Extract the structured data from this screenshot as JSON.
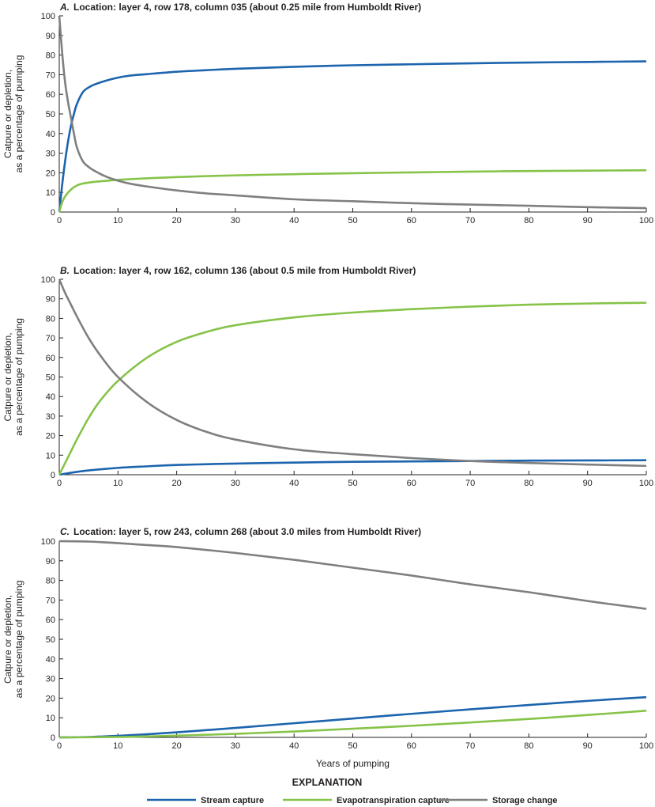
{
  "colors": {
    "stream": "#1c64ad",
    "et": "#86c348",
    "storage": "#7f7f80",
    "axis": "#231f20"
  },
  "legend": {
    "title": "EXPLANATION",
    "items": [
      {
        "label": "Stream capture",
        "color": "#1c64ad"
      },
      {
        "label": "Evapotranspiration capture",
        "color": "#86c348"
      },
      {
        "label": "Storage change",
        "color": "#7f7f80"
      }
    ]
  },
  "chart_data": [
    {
      "type": "line",
      "panel": "A.",
      "title": "Location: layer 4, row 178, column 035 (about 0.25 mile from Humboldt River)",
      "ylabel": [
        "Catpure or depletion,",
        "as a percentage of pumping"
      ],
      "xlabel": "",
      "xlim": [
        0,
        100
      ],
      "ylim": [
        0,
        100
      ],
      "xticks": [
        "0",
        "10",
        "20",
        "30",
        "40",
        "50",
        "60",
        "70",
        "80",
        "90",
        "100"
      ],
      "yticks": [
        "0",
        "10",
        "20",
        "30",
        "40",
        "50",
        "60",
        "70",
        "80",
        "90",
        "100"
      ],
      "series": [
        {
          "name": "Stream capture",
          "key": "stream",
          "x": [
            0,
            0.5,
            1,
            1.5,
            2,
            2.5,
            3,
            4,
            5,
            6,
            8,
            10,
            12,
            15,
            20,
            25,
            30,
            40,
            50,
            60,
            70,
            80,
            90,
            100
          ],
          "y": [
            0,
            14,
            26,
            36,
            44,
            50,
            55,
            61,
            63.5,
            65,
            67,
            68.5,
            69.5,
            70.3,
            71.5,
            72.3,
            73,
            74,
            74.8,
            75.3,
            75.8,
            76.2,
            76.5,
            76.8
          ]
        },
        {
          "name": "Evapotranspiration capture",
          "key": "et",
          "x": [
            0,
            0.5,
            1,
            2,
            3,
            4,
            5,
            6,
            8,
            10,
            15,
            20,
            25,
            30,
            40,
            50,
            60,
            70,
            80,
            90,
            100
          ],
          "y": [
            0,
            5,
            8,
            11.5,
            13.5,
            14.5,
            15,
            15.4,
            15.9,
            16.4,
            17.2,
            17.8,
            18.3,
            18.7,
            19.3,
            19.8,
            20.2,
            20.6,
            20.9,
            21.1,
            21.3
          ]
        },
        {
          "name": "Storage change",
          "key": "storage",
          "x": [
            0,
            0.5,
            1,
            1.5,
            2,
            2.5,
            3,
            4,
            5,
            6,
            8,
            10,
            12,
            15,
            20,
            25,
            30,
            40,
            50,
            60,
            70,
            80,
            90,
            100
          ],
          "y": [
            100,
            81,
            66,
            56,
            48,
            40,
            33,
            26,
            23,
            21,
            18,
            16,
            14.5,
            13,
            11,
            9.5,
            8.5,
            6.5,
            5.5,
            4.5,
            3.8,
            3.2,
            2.5,
            2
          ]
        }
      ]
    },
    {
      "type": "line",
      "panel": "B.",
      "title": "Location: layer 4, row 162, column 136 (about 0.5 mile from Humboldt River)",
      "ylabel": [
        "Catpure or depletion,",
        "as a percentage of pumping"
      ],
      "xlabel": "",
      "xlim": [
        0,
        100
      ],
      "ylim": [
        0,
        100
      ],
      "xticks": [
        "0",
        "10",
        "20",
        "30",
        "40",
        "50",
        "60",
        "70",
        "80",
        "90",
        "100"
      ],
      "yticks": [
        "0",
        "10",
        "20",
        "30",
        "40",
        "50",
        "60",
        "70",
        "80",
        "90",
        "100"
      ],
      "series": [
        {
          "name": "Stream capture",
          "key": "stream",
          "x": [
            0,
            2,
            5,
            10,
            15,
            20,
            30,
            40,
            50,
            60,
            70,
            80,
            90,
            100
          ],
          "y": [
            0,
            1,
            2.2,
            3.5,
            4.3,
            5,
            5.7,
            6.2,
            6.6,
            6.8,
            7,
            7.2,
            7.3,
            7.4
          ]
        },
        {
          "name": "Evapotranspiration capture",
          "key": "et",
          "x": [
            0,
            1,
            2,
            3,
            5,
            7,
            10,
            15,
            20,
            25,
            30,
            40,
            50,
            60,
            70,
            80,
            90,
            100
          ],
          "y": [
            0,
            6,
            12,
            18,
            29,
            38,
            48,
            60,
            68,
            73,
            76.5,
            80.5,
            83,
            84.7,
            86,
            87,
            87.6,
            88
          ]
        },
        {
          "name": "Storage change",
          "key": "storage",
          "x": [
            0,
            1,
            2,
            3,
            5,
            7,
            10,
            15,
            20,
            25,
            30,
            40,
            50,
            60,
            70,
            80,
            90,
            100
          ],
          "y": [
            100,
            93,
            87,
            81,
            70,
            61,
            50,
            37,
            28,
            22,
            18,
            13,
            10.5,
            8.5,
            7,
            6,
            5.2,
            4.5
          ]
        }
      ]
    },
    {
      "type": "line",
      "panel": "C.",
      "title": "Location: layer 5, row 243, column 268 (about 3.0 miles from Humboldt River)",
      "ylabel": [
        "Catpure or depletion,",
        "as a percentage of pumping"
      ],
      "xlabel": "Years of pumping",
      "xlim": [
        0,
        100
      ],
      "ylim": [
        0,
        100
      ],
      "xticks": [
        "0",
        "10",
        "20",
        "30",
        "40",
        "50",
        "60",
        "70",
        "80",
        "90",
        "100"
      ],
      "yticks": [
        "0",
        "10",
        "20",
        "30",
        "40",
        "50",
        "60",
        "70",
        "80",
        "90",
        "100"
      ],
      "series": [
        {
          "name": "Stream capture",
          "key": "stream",
          "x": [
            0,
            5,
            10,
            15,
            20,
            30,
            40,
            50,
            60,
            70,
            80,
            90,
            100
          ],
          "y": [
            0,
            0.2,
            0.8,
            1.6,
            2.6,
            4.8,
            7.2,
            9.6,
            12,
            14.3,
            16.5,
            18.6,
            20.5
          ]
        },
        {
          "name": "Evapotranspiration capture",
          "key": "et",
          "x": [
            0,
            10,
            15,
            20,
            30,
            40,
            50,
            60,
            70,
            80,
            90,
            100
          ],
          "y": [
            0,
            0.2,
            0.5,
            0.9,
            1.8,
            3,
            4.4,
            5.9,
            7.6,
            9.4,
            11.4,
            13.6
          ]
        },
        {
          "name": "Storage change",
          "key": "storage",
          "x": [
            0,
            5,
            10,
            15,
            20,
            30,
            40,
            50,
            60,
            70,
            80,
            90,
            100
          ],
          "y": [
            100,
            99.8,
            99,
            98,
            97,
            94,
            90.5,
            86.5,
            82.5,
            78,
            74,
            69.5,
            65.5
          ]
        }
      ]
    }
  ]
}
